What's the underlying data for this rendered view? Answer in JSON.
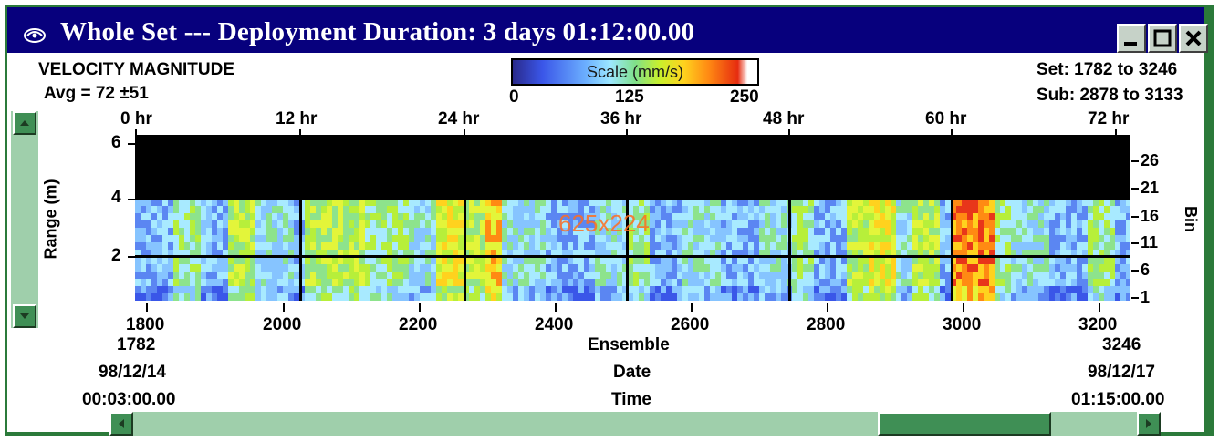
{
  "window": {
    "title": "Whole Set --- Deployment Duration: 3 days 01:12:00.00",
    "title_bg": "#07007d",
    "frame_color": "#2b7a3a",
    "buttons": [
      "minimize-icon",
      "maximize-icon",
      "close-icon"
    ]
  },
  "plot": {
    "variable": "VELOCITY MAGNITUDE",
    "avg": "Avg = 72 ±51",
    "set_range": "Set: 1782 to 3246",
    "sub_range": "Sub: 2878 to 3133",
    "overlay_text": "625x224",
    "scale": {
      "label": "Scale (mm/s)",
      "min": "0",
      "mid": "125",
      "max": "250"
    },
    "hour_ticks": [
      "0 hr",
      "12 hr",
      "24 hr",
      "36 hr",
      "48 hr",
      "60 hr",
      "72 hr"
    ],
    "range_ticks": [
      "6",
      "4",
      "2"
    ],
    "range_label": "Range (m)",
    "bin_ticks": [
      "26",
      "21",
      "16",
      "11",
      "6",
      "1"
    ],
    "bin_label": "Bin",
    "ensemble_ticks": [
      "1800",
      "2000",
      "2200",
      "2400",
      "2600",
      "2800",
      "3000",
      "3200"
    ],
    "ensemble_label": "Ensemble",
    "date_label": "Date",
    "time_label": "Time",
    "start": {
      "ensemble": "1782",
      "date": "98/12/14",
      "time": "00:03:00.00"
    },
    "end": {
      "ensemble": "3246",
      "date": "98/12/17",
      "time": "01:15:00.00"
    }
  },
  "scrollbars": {
    "vertical_up": "up-arrow-icon",
    "vertical_down": "down-arrow-icon",
    "horizontal_left": "left-arrow-icon",
    "horizontal_right": "right-arrow-icon",
    "thumb_color": "#3f8f55",
    "track_color": "#9fcfab"
  }
}
